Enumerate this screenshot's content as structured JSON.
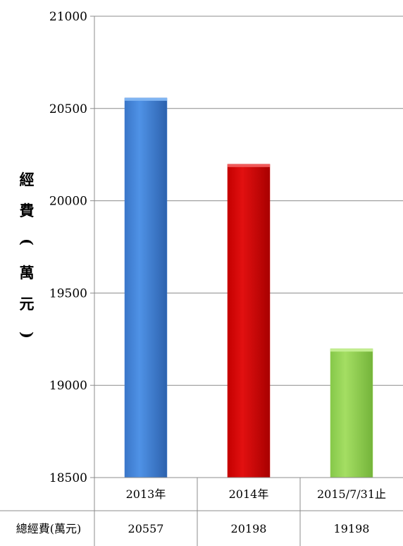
{
  "chart_data": {
    "type": "bar",
    "ylabel": "經費(萬元)",
    "ylim": [
      18500,
      21000
    ],
    "yticks": [
      18500,
      19000,
      19500,
      20000,
      20500,
      21000
    ],
    "grid": true,
    "categories": [
      "2013年",
      "2014年",
      "2015/7/31止"
    ],
    "values": [
      20557,
      20198,
      19198
    ],
    "colors": [
      "#3f7fd6",
      "#cc0000",
      "#92d050"
    ],
    "table": {
      "row_label": "總經費(萬元)",
      "values": [
        "20557",
        "20198",
        "19198"
      ]
    }
  }
}
